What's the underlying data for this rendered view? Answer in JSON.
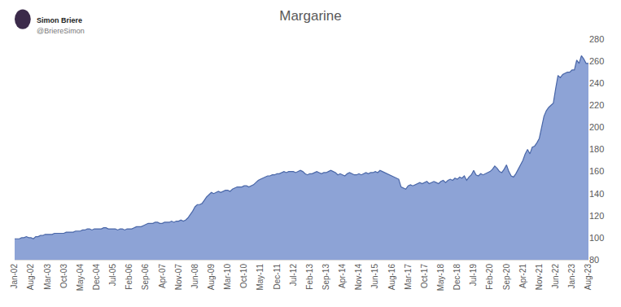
{
  "chart_data": {
    "type": "area",
    "title": "Margarine",
    "annotations": [
      "Simon Briere",
      "@BriereSimon"
    ],
    "color": "#8da3d6",
    "grid": false,
    "ylim": [
      80,
      280
    ],
    "yticks": [
      80,
      100,
      120,
      140,
      160,
      180,
      200,
      220,
      240,
      260,
      280
    ],
    "categories": [
      "Jan-02",
      null,
      null,
      null,
      null,
      null,
      null,
      "Aug-02",
      null,
      null,
      null,
      null,
      null,
      null,
      "Mar-03",
      null,
      null,
      null,
      null,
      null,
      null,
      "Oct-03",
      null,
      null,
      null,
      null,
      null,
      null,
      "May-04",
      null,
      null,
      null,
      null,
      null,
      null,
      "Dec-04",
      null,
      null,
      null,
      null,
      null,
      null,
      "Jul-05",
      null,
      null,
      null,
      null,
      null,
      null,
      "Feb-06",
      null,
      null,
      null,
      null,
      null,
      null,
      "Sep-06",
      null,
      null,
      null,
      null,
      null,
      null,
      "Apr-07",
      null,
      null,
      null,
      null,
      null,
      null,
      "Nov-07",
      null,
      null,
      null,
      null,
      null,
      null,
      "Jun-08",
      null,
      null,
      null,
      null,
      null,
      null,
      "Aug-09",
      null,
      null,
      null,
      null,
      null,
      null,
      "Mar-10",
      null,
      null,
      null,
      null,
      null,
      null,
      "Oct-10",
      null,
      null,
      null,
      null,
      null,
      null,
      "May-11",
      null,
      null,
      null,
      null,
      null,
      null,
      "Dec-11",
      null,
      null,
      null,
      null,
      null,
      null,
      "Jul-12",
      null,
      null,
      null,
      null,
      null,
      null,
      "Feb-13",
      null,
      null,
      null,
      null,
      null,
      null,
      "Sep-13",
      null,
      null,
      null,
      null,
      null,
      null,
      "Apr-14",
      null,
      null,
      null,
      null,
      null,
      null,
      "Nov-14",
      null,
      null,
      null,
      null,
      null,
      null,
      "Jun-15",
      null,
      null,
      null,
      null,
      null,
      null,
      "Aug-16",
      null,
      null,
      null,
      null,
      null,
      null,
      "Mar-17",
      null,
      null,
      null,
      null,
      null,
      null,
      "Oct-17",
      null,
      null,
      null,
      null,
      null,
      null,
      "May-18",
      null,
      null,
      null,
      null,
      null,
      null,
      "Dec-18",
      null,
      null,
      null,
      null,
      null,
      null,
      "Jul-19",
      null,
      null,
      null,
      null,
      null,
      null,
      "Feb-20",
      null,
      null,
      null,
      null,
      null,
      null,
      "Sep-20",
      null,
      null,
      null,
      null,
      null,
      null,
      "Apr-21",
      null,
      null,
      null,
      null,
      null,
      null,
      "Nov-21",
      null,
      null,
      null,
      null,
      null,
      null,
      "Jun-22",
      null,
      null,
      null,
      null,
      null,
      null,
      "Jan-23",
      null,
      null,
      null,
      null,
      null,
      null,
      "Aug-23"
    ],
    "values": [
      99,
      99,
      99,
      100,
      100,
      101,
      100,
      100,
      99,
      101,
      101,
      102,
      102,
      103,
      103,
      103,
      103,
      104,
      104,
      104,
      104,
      104,
      105,
      105,
      105,
      105,
      106,
      106,
      106,
      107,
      107,
      108,
      108,
      107,
      108,
      108,
      108,
      108,
      109,
      109,
      108,
      108,
      108,
      108,
      107,
      108,
      108,
      107,
      108,
      108,
      108,
      109,
      110,
      110,
      110,
      111,
      112,
      113,
      113,
      113,
      114,
      114,
      113,
      113,
      114,
      114,
      114,
      115,
      114,
      115,
      115,
      116,
      115,
      116,
      118,
      121,
      124,
      128,
      130,
      130,
      131,
      134,
      137,
      139,
      141,
      140,
      141,
      142,
      141,
      142,
      143,
      143,
      142,
      144,
      145,
      146,
      146,
      146,
      147,
      147,
      146,
      147,
      148,
      150,
      152,
      153,
      154,
      155,
      156,
      156,
      157,
      157,
      158,
      158,
      159,
      160,
      159,
      160,
      160,
      160,
      159,
      160,
      161,
      160,
      158,
      157,
      158,
      158,
      159,
      160,
      159,
      158,
      159,
      159,
      160,
      161,
      160,
      159,
      157,
      158,
      157,
      156,
      158,
      159,
      158,
      157,
      157,
      158,
      157,
      158,
      159,
      158,
      159,
      159,
      160,
      159,
      161,
      160,
      159,
      158,
      157,
      156,
      155,
      154,
      153,
      146,
      145,
      144,
      147,
      148,
      147,
      148,
      149,
      150,
      149,
      150,
      151,
      149,
      150,
      151,
      150,
      149,
      151,
      152,
      150,
      152,
      153,
      152,
      154,
      153,
      155,
      154,
      156,
      152,
      155,
      157,
      161,
      157,
      156,
      158,
      157,
      158,
      159,
      160,
      162,
      165,
      163,
      160,
      159,
      162,
      166,
      160,
      156,
      155,
      158,
      162,
      165,
      170,
      176,
      180,
      176,
      182,
      183,
      186,
      190,
      200,
      210,
      215,
      218,
      220,
      222,
      235,
      247,
      245,
      248,
      249,
      250,
      250,
      252,
      252,
      261,
      258,
      265,
      262,
      258,
      258
    ]
  }
}
